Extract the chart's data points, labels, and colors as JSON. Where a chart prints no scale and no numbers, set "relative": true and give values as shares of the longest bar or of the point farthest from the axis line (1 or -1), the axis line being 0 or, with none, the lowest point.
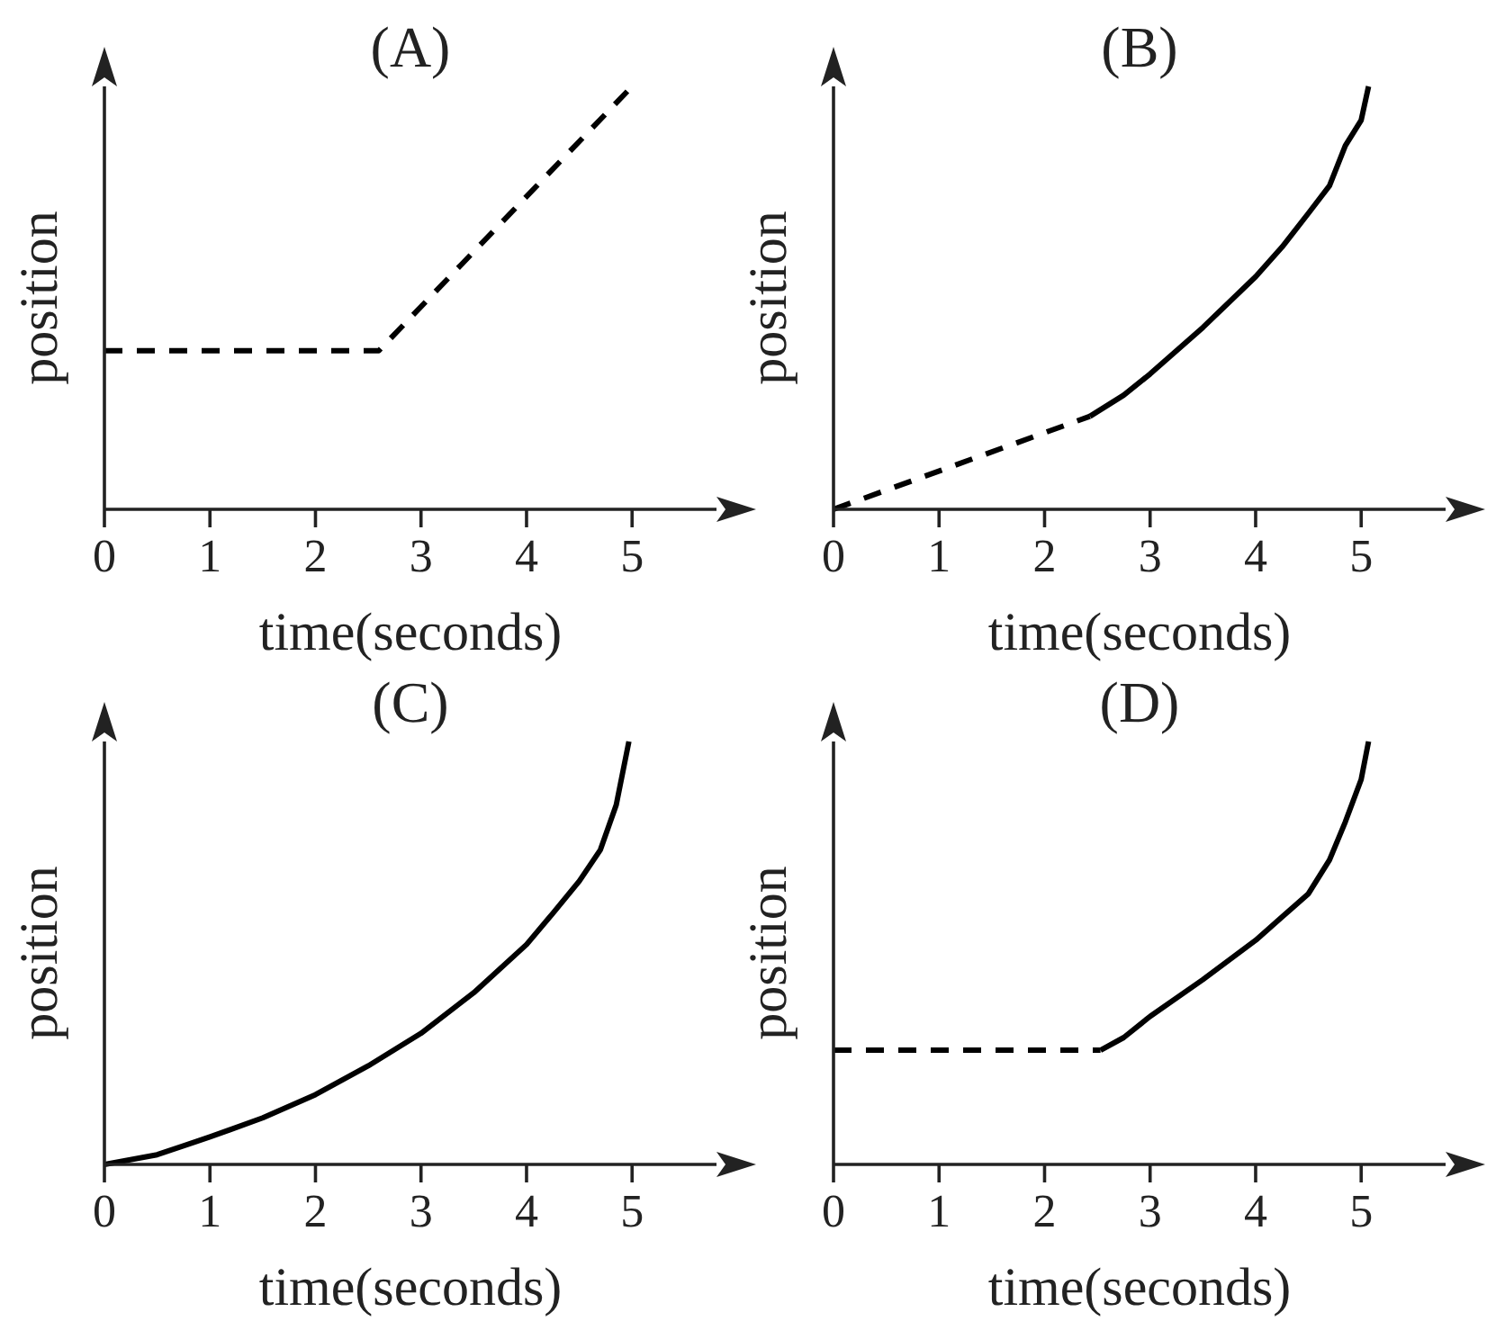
{
  "chart_data": [
    {
      "type": "line",
      "title": "(A)",
      "xlabel": "time(seconds)",
      "ylabel": "position",
      "relative": true,
      "xlim": [
        0,
        5.8
      ],
      "xticks": [
        0,
        1,
        2,
        3,
        4,
        5
      ],
      "tick_labels": "x",
      "marker": "none",
      "line_style": "dashed",
      "series": [
        {
          "color": "#000000",
          "x": [
            0,
            2.6,
            5
          ],
          "values": [
            0.375,
            0.375,
            1
          ]
        }
      ]
    },
    {
      "type": "line",
      "title": "(B)",
      "xlabel": "time(seconds)",
      "ylabel": "position",
      "relative": true,
      "xlim": [
        0,
        5.8
      ],
      "xticks": [
        0,
        1,
        2,
        3,
        4,
        5
      ],
      "tick_labels": "x",
      "marker": "none",
      "series": [
        {
          "color": "#000000",
          "line_style": "dashed",
          "x": [
            0,
            2.43
          ],
          "values": [
            0,
            0.22
          ]
        },
        {
          "color": "#000000",
          "line_style": "solid",
          "x": [
            2.43,
            2.75,
            3,
            3.5,
            4,
            4.25,
            4.5,
            4.7,
            4.85,
            5,
            5.07
          ],
          "values": [
            0.22,
            0.27,
            0.32,
            0.43,
            0.55,
            0.62,
            0.7,
            0.765,
            0.86,
            0.92,
            1
          ]
        }
      ]
    },
    {
      "type": "line",
      "title": "(C)",
      "xlabel": "time(seconds)",
      "ylabel": "position",
      "relative": true,
      "xlim": [
        0,
        5.8
      ],
      "xticks": [
        0,
        1,
        2,
        3,
        4,
        5
      ],
      "tick_labels": "x",
      "marker": "none",
      "line_style": "solid",
      "series": [
        {
          "color": "#000000",
          "x": [
            0,
            0.5,
            1,
            1.5,
            2,
            2.5,
            3,
            3.5,
            4,
            4.25,
            4.5,
            4.7,
            4.85,
            4.97
          ],
          "values": [
            0,
            0.023,
            0.065,
            0.11,
            0.165,
            0.233,
            0.31,
            0.406,
            0.52,
            0.594,
            0.67,
            0.744,
            0.85,
            1
          ]
        }
      ]
    },
    {
      "type": "line",
      "title": "(D)",
      "xlabel": "time(seconds)",
      "ylabel": "position",
      "relative": true,
      "xlim": [
        0,
        5.8
      ],
      "xticks": [
        0,
        1,
        2,
        3,
        4,
        5
      ],
      "tick_labels": "x",
      "marker": "none",
      "series": [
        {
          "color": "#000000",
          "line_style": "dashed",
          "x": [
            0,
            2.53
          ],
          "values": [
            0.27,
            0.27
          ]
        },
        {
          "color": "#000000",
          "line_style": "solid",
          "x": [
            2.53,
            2.75,
            3,
            3.5,
            4,
            4.25,
            4.5,
            4.7,
            4.85,
            5,
            5.07
          ],
          "values": [
            0.27,
            0.3,
            0.35,
            0.437,
            0.53,
            0.585,
            0.64,
            0.72,
            0.81,
            0.91,
            1
          ]
        }
      ]
    }
  ]
}
